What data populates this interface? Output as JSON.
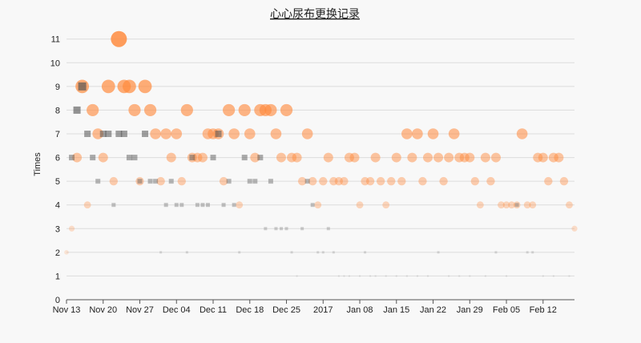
{
  "chart_data": {
    "type": "scatter",
    "title": "心心尿布更换记录",
    "xlabel": "",
    "ylabel": "Times",
    "ylim": [
      0,
      11.7
    ],
    "yticks": [
      0,
      1,
      2,
      3,
      4,
      5,
      6,
      7,
      8,
      9,
      10,
      11
    ],
    "grid": "horizontal",
    "x_start_date": "2016-11-13",
    "x_end_date": "2017-02-18",
    "xticks": [
      {
        "label": "Nov 13",
        "date": "2016-11-13"
      },
      {
        "label": "Nov 20",
        "date": "2016-11-20"
      },
      {
        "label": "Nov 27",
        "date": "2016-11-27"
      },
      {
        "label": "Dec 04",
        "date": "2016-12-04"
      },
      {
        "label": "Dec 11",
        "date": "2016-12-11"
      },
      {
        "label": "Dec 18",
        "date": "2016-12-18"
      },
      {
        "label": "Dec 25",
        "date": "2016-12-25"
      },
      {
        "label": "2017",
        "date": "2017-01-01"
      },
      {
        "label": "Jan 08",
        "date": "2017-01-08"
      },
      {
        "label": "Jan 15",
        "date": "2017-01-15"
      },
      {
        "label": "Jan 22",
        "date": "2017-01-22"
      },
      {
        "label": "Jan 29",
        "date": "2017-01-29"
      },
      {
        "label": "Feb 05",
        "date": "2017-02-05"
      },
      {
        "label": "Feb 12",
        "date": "2017-02-12"
      }
    ],
    "series": [
      {
        "marker": "circle",
        "color": "#ff8a3d",
        "points": [
          [
            "2016-11-13",
            2
          ],
          [
            "2016-11-14",
            3
          ],
          [
            "2016-11-15",
            6
          ],
          [
            "2016-11-16",
            9
          ],
          [
            "2016-11-17",
            4
          ],
          [
            "2016-11-18",
            8
          ],
          [
            "2016-11-19",
            7
          ],
          [
            "2016-11-20",
            6
          ],
          [
            "2016-11-21",
            9
          ],
          [
            "2016-11-22",
            5
          ],
          [
            "2016-11-23",
            11
          ],
          [
            "2016-11-24",
            9
          ],
          [
            "2016-11-25",
            9
          ],
          [
            "2016-11-26",
            8
          ],
          [
            "2016-11-27",
            5
          ],
          [
            "2016-11-28",
            9
          ],
          [
            "2016-11-29",
            8
          ],
          [
            "2016-11-30",
            7
          ],
          [
            "2016-12-01",
            5
          ],
          [
            "2016-12-02",
            7
          ],
          [
            "2016-12-03",
            6
          ],
          [
            "2016-12-04",
            7
          ],
          [
            "2016-12-05",
            5
          ],
          [
            "2016-12-06",
            8
          ],
          [
            "2016-12-07",
            6
          ],
          [
            "2016-12-08",
            6
          ],
          [
            "2016-12-09",
            6
          ],
          [
            "2016-12-10",
            7
          ],
          [
            "2016-12-11",
            7
          ],
          [
            "2016-12-12",
            7
          ],
          [
            "2016-12-13",
            5
          ],
          [
            "2016-12-14",
            8
          ],
          [
            "2016-12-15",
            7
          ],
          [
            "2016-12-16",
            4
          ],
          [
            "2016-12-17",
            8
          ],
          [
            "2016-12-18",
            7
          ],
          [
            "2016-12-19",
            6
          ],
          [
            "2016-12-20",
            8
          ],
          [
            "2016-12-21",
            8
          ],
          [
            "2016-12-22",
            8
          ],
          [
            "2016-12-23",
            7
          ],
          [
            "2016-12-24",
            6
          ],
          [
            "2016-12-25",
            8
          ],
          [
            "2016-12-26",
            6
          ],
          [
            "2016-12-27",
            6
          ],
          [
            "2016-12-28",
            5
          ],
          [
            "2016-12-29",
            7
          ],
          [
            "2016-12-30",
            5
          ],
          [
            "2016-12-31",
            4
          ],
          [
            "2017-01-01",
            5
          ],
          [
            "2017-01-02",
            6
          ],
          [
            "2017-01-03",
            5
          ],
          [
            "2017-01-04",
            5
          ],
          [
            "2017-01-05",
            5
          ],
          [
            "2017-01-06",
            6
          ],
          [
            "2017-01-07",
            6
          ],
          [
            "2017-01-08",
            4
          ],
          [
            "2017-01-09",
            5
          ],
          [
            "2017-01-10",
            5
          ],
          [
            "2017-01-11",
            6
          ],
          [
            "2017-01-12",
            5
          ],
          [
            "2017-01-13",
            4
          ],
          [
            "2017-01-14",
            5
          ],
          [
            "2017-01-15",
            6
          ],
          [
            "2017-01-16",
            5
          ],
          [
            "2017-01-17",
            7
          ],
          [
            "2017-01-18",
            6
          ],
          [
            "2017-01-19",
            7
          ],
          [
            "2017-01-20",
            5
          ],
          [
            "2017-01-21",
            6
          ],
          [
            "2017-01-22",
            7
          ],
          [
            "2017-01-23",
            6
          ],
          [
            "2017-01-24",
            5
          ],
          [
            "2017-01-25",
            6
          ],
          [
            "2017-01-26",
            7
          ],
          [
            "2017-01-27",
            6
          ],
          [
            "2017-01-28",
            6
          ],
          [
            "2017-01-29",
            6
          ],
          [
            "2017-01-30",
            5
          ],
          [
            "2017-01-31",
            4
          ],
          [
            "2017-02-01",
            6
          ],
          [
            "2017-02-02",
            5
          ],
          [
            "2017-02-03",
            6
          ],
          [
            "2017-02-04",
            4
          ],
          [
            "2017-02-05",
            4
          ],
          [
            "2017-02-06",
            4
          ],
          [
            "2017-02-07",
            4
          ],
          [
            "2017-02-08",
            7
          ],
          [
            "2017-02-09",
            4
          ],
          [
            "2017-02-10",
            4
          ],
          [
            "2017-02-11",
            6
          ],
          [
            "2017-02-12",
            6
          ],
          [
            "2017-02-13",
            5
          ],
          [
            "2017-02-14",
            6
          ],
          [
            "2017-02-15",
            6
          ],
          [
            "2017-02-16",
            5
          ],
          [
            "2017-02-17",
            4
          ],
          [
            "2017-02-18",
            3
          ]
        ]
      },
      {
        "marker": "square",
        "color": "#555555",
        "points": [
          [
            "2016-11-14",
            6
          ],
          [
            "2016-11-15",
            8
          ],
          [
            "2016-11-16",
            9
          ],
          [
            "2016-11-17",
            7
          ],
          [
            "2016-11-18",
            6
          ],
          [
            "2016-11-19",
            5
          ],
          [
            "2016-11-20",
            7
          ],
          [
            "2016-11-21",
            7
          ],
          [
            "2016-11-22",
            4
          ],
          [
            "2016-11-23",
            7
          ],
          [
            "2016-11-24",
            7
          ],
          [
            "2016-11-25",
            6
          ],
          [
            "2016-11-26",
            6
          ],
          [
            "2016-11-27",
            5
          ],
          [
            "2016-11-28",
            7
          ],
          [
            "2016-11-29",
            5
          ],
          [
            "2016-11-30",
            5
          ],
          [
            "2016-12-01",
            2
          ],
          [
            "2016-12-02",
            4
          ],
          [
            "2016-12-03",
            5
          ],
          [
            "2016-12-04",
            4
          ],
          [
            "2016-12-05",
            4
          ],
          [
            "2016-12-06",
            2
          ],
          [
            "2016-12-07",
            6
          ],
          [
            "2016-12-08",
            4
          ],
          [
            "2016-12-09",
            4
          ],
          [
            "2016-12-10",
            4
          ],
          [
            "2016-12-11",
            6
          ],
          [
            "2016-12-12",
            7
          ],
          [
            "2016-12-13",
            4
          ],
          [
            "2016-12-14",
            5
          ],
          [
            "2016-12-15",
            4
          ],
          [
            "2016-12-16",
            2
          ],
          [
            "2016-12-17",
            6
          ],
          [
            "2016-12-18",
            5
          ],
          [
            "2016-12-19",
            5
          ],
          [
            "2016-12-20",
            6
          ],
          [
            "2016-12-21",
            3
          ],
          [
            "2016-12-22",
            5
          ],
          [
            "2016-12-23",
            3
          ],
          [
            "2016-12-24",
            3
          ],
          [
            "2016-12-25",
            3
          ],
          [
            "2016-12-26",
            2
          ],
          [
            "2016-12-27",
            1
          ],
          [
            "2016-12-28",
            3
          ],
          [
            "2016-12-29",
            5
          ],
          [
            "2016-12-30",
            4
          ],
          [
            "2016-12-31",
            2
          ],
          [
            "2017-01-01",
            2
          ],
          [
            "2017-01-02",
            3
          ],
          [
            "2017-01-03",
            2
          ],
          [
            "2017-01-04",
            1
          ],
          [
            "2017-01-05",
            1
          ],
          [
            "2017-01-06",
            1
          ],
          [
            "2017-01-08",
            1
          ],
          [
            "2017-01-09",
            2
          ],
          [
            "2017-01-10",
            1
          ],
          [
            "2017-01-11",
            1
          ],
          [
            "2017-01-13",
            1
          ],
          [
            "2017-01-15",
            1
          ],
          [
            "2017-01-17",
            1
          ],
          [
            "2017-01-19",
            1
          ],
          [
            "2017-01-21",
            1
          ],
          [
            "2017-01-23",
            2
          ],
          [
            "2017-01-25",
            1
          ],
          [
            "2017-01-27",
            1
          ],
          [
            "2017-01-29",
            1
          ],
          [
            "2017-02-01",
            1
          ],
          [
            "2017-02-03",
            2
          ],
          [
            "2017-02-05",
            1
          ],
          [
            "2017-02-07",
            4
          ],
          [
            "2017-02-09",
            2
          ],
          [
            "2017-02-10",
            2
          ],
          [
            "2017-02-12",
            1
          ],
          [
            "2017-02-14",
            1
          ],
          [
            "2017-02-17",
            1
          ]
        ]
      }
    ]
  }
}
